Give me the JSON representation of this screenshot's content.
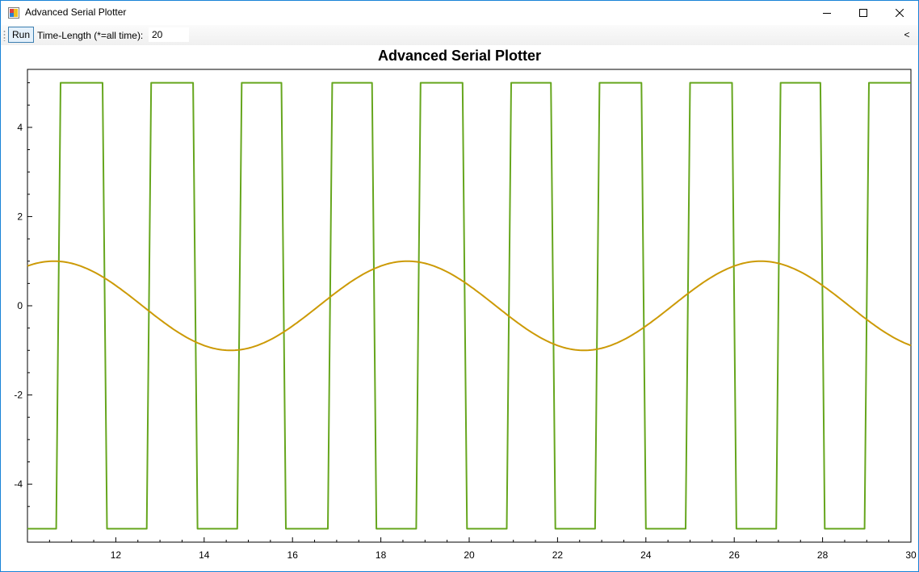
{
  "window": {
    "title": "Advanced Serial Plotter",
    "icon": "app-window-icon",
    "controls": [
      "minimize-icon",
      "maximize-icon",
      "close-icon"
    ]
  },
  "toolbar": {
    "run_label": "Run",
    "time_length_label": "Time-Length (*=all time):",
    "time_length_value": "20",
    "overflow_label": "<"
  },
  "chart_data": {
    "type": "line",
    "title": "Advanced Serial Plotter",
    "xlabel": "",
    "ylabel": "",
    "xlim": [
      10.0,
      30.0
    ],
    "ylim": [
      -5.3,
      5.3
    ],
    "x_ticks": [
      12,
      14,
      16,
      18,
      20,
      22,
      24,
      26,
      28,
      30
    ],
    "y_ticks": [
      -4,
      -2,
      0,
      2,
      4
    ],
    "grid": false,
    "legend": "none",
    "series": [
      {
        "color": "#66a61e",
        "style": "square",
        "x": [
          10.0,
          10.65,
          10.75,
          11.7,
          11.8,
          12.7,
          12.8,
          13.75,
          13.85,
          14.75,
          14.85,
          15.75,
          15.85,
          16.8,
          16.9,
          17.8,
          17.9,
          18.8,
          18.9,
          19.85,
          19.95,
          20.85,
          20.95,
          21.85,
          21.95,
          22.85,
          22.95,
          23.9,
          24.0,
          24.9,
          25.0,
          25.95,
          26.05,
          26.95,
          27.05,
          27.95,
          28.05,
          28.95,
          29.05,
          29.85,
          30.0
        ],
        "y": [
          -5,
          -5,
          5,
          5,
          -5,
          -5,
          5,
          5,
          -5,
          -5,
          5,
          5,
          -5,
          -5,
          5,
          5,
          -5,
          -5,
          5,
          5,
          -5,
          -5,
          5,
          5,
          -5,
          -5,
          5,
          5,
          -5,
          -5,
          5,
          5,
          -5,
          -5,
          5,
          5,
          -5,
          -5,
          5,
          5,
          5
        ]
      },
      {
        "color": "#cc9a06",
        "style": "sine",
        "x": [
          10.0,
          10.6,
          11.0,
          11.5,
          12.0,
          12.5,
          13.0,
          13.5,
          14.0,
          14.6,
          15.0,
          15.5,
          16.0,
          16.5,
          17.0,
          17.5,
          18.0,
          18.6,
          19.0,
          19.5,
          20.0,
          20.5,
          21.0,
          21.5,
          22.0,
          22.6,
          23.0,
          23.5,
          24.0,
          24.5,
          25.0,
          25.5,
          26.0,
          26.6,
          27.0,
          27.5,
          28.0,
          28.5,
          29.0,
          29.5,
          30.0
        ],
        "y": [
          0.9,
          1.0,
          0.92,
          0.71,
          0.38,
          0.0,
          -0.38,
          -0.71,
          -0.92,
          -1.0,
          -0.92,
          -0.71,
          -0.38,
          0.0,
          0.38,
          0.71,
          0.92,
          1.0,
          0.92,
          0.71,
          0.38,
          0.0,
          -0.38,
          -0.71,
          -0.92,
          -1.0,
          -0.92,
          -0.71,
          -0.38,
          0.0,
          0.38,
          0.71,
          0.92,
          1.0,
          0.92,
          0.71,
          0.38,
          0.0,
          -0.38,
          -0.71,
          -0.9
        ]
      }
    ]
  }
}
